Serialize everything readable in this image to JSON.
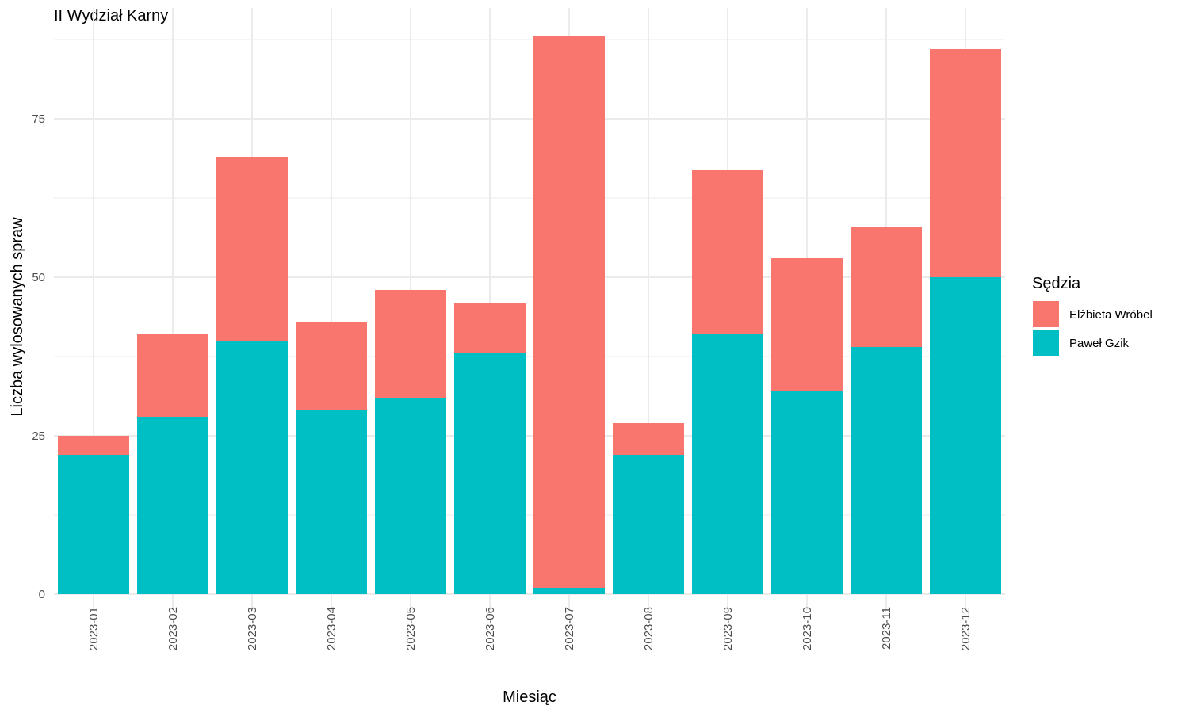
{
  "chart_data": {
    "type": "bar",
    "stacked": true,
    "title": "II Wydział Karny",
    "xlabel": "Miesiąc",
    "ylabel": "Liczba wylosowanych spraw",
    "categories": [
      "2023-01",
      "2023-02",
      "2023-03",
      "2023-04",
      "2023-05",
      "2023-06",
      "2023-07",
      "2023-08",
      "2023-09",
      "2023-10",
      "2023-11",
      "2023-12"
    ],
    "series": [
      {
        "name": "Paweł Gzik",
        "color": "#00BFC4",
        "values": [
          22,
          28,
          40,
          29,
          31,
          38,
          1,
          22,
          41,
          32,
          39,
          50
        ]
      },
      {
        "name": "Elżbieta Wróbel",
        "color": "#F8766D",
        "values": [
          3,
          13,
          29,
          14,
          17,
          8,
          87,
          5,
          26,
          21,
          19,
          36
        ]
      }
    ],
    "ylim": [
      0,
      90
    ],
    "yticks": [
      0,
      25,
      50,
      75
    ],
    "grid": true,
    "legend": {
      "title": "Sędzia",
      "position": "right",
      "order": [
        "Elżbieta Wróbel",
        "Paweł Gzik"
      ]
    }
  }
}
